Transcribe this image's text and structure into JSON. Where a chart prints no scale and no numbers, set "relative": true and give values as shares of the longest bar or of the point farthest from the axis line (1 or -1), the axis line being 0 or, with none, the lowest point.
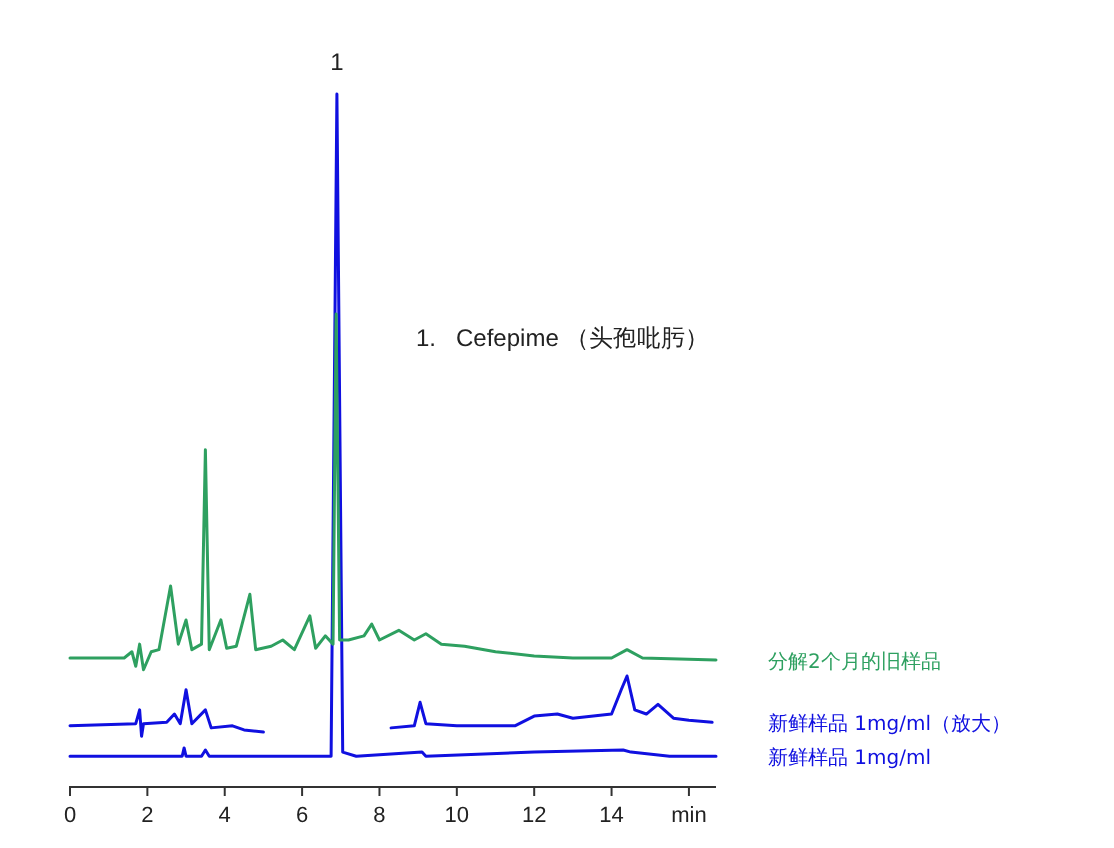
{
  "chart_data": {
    "type": "line",
    "relative": true,
    "xlim": [
      0,
      16.7
    ],
    "xticks": [
      0,
      2,
      4,
      6,
      8,
      10,
      12,
      14,
      {
        "value": 16,
        "label": "min"
      }
    ],
    "legend": "right",
    "annotations": [
      {
        "text": "1",
        "x": 6.9,
        "y": 1
      },
      "1.   Cefepime （头孢吡肟）"
    ],
    "series": [
      {
        "name": "分解2个月的旧样品",
        "color": "#2ea060",
        "x": [
          0,
          1.4,
          1.6,
          1.7,
          1.8,
          1.9,
          2.1,
          2.3,
          2.6,
          2.8,
          3.0,
          3.15,
          3.4,
          3.5,
          3.6,
          3.9,
          4.05,
          4.3,
          4.65,
          4.8,
          5.2,
          5.5,
          5.8,
          6.2,
          6.35,
          6.6,
          6.8,
          6.88,
          6.97,
          7.2,
          7.6,
          7.8,
          8.0,
          8.5,
          8.9,
          9.2,
          9.6,
          10.2,
          11,
          12,
          13,
          14,
          14.4,
          14.8,
          16.7
        ],
        "values": [
          0.185,
          0.185,
          0.194,
          0.173,
          0.205,
          0.168,
          0.194,
          0.197,
          0.289,
          0.205,
          0.24,
          0.197,
          0.205,
          0.486,
          0.197,
          0.24,
          0.199,
          0.202,
          0.277,
          0.197,
          0.202,
          0.211,
          0.197,
          0.246,
          0.199,
          0.217,
          0.205,
          0.682,
          0.211,
          0.211,
          0.217,
          0.234,
          0.211,
          0.225,
          0.211,
          0.22,
          0.205,
          0.202,
          0.194,
          0.188,
          0.185,
          0.185,
          0.197,
          0.185,
          0.182
        ]
      },
      {
        "name": "新鲜样品 1mg/ml（放大）",
        "color": "#1010e0",
        "x": [
          8.3,
          8.9,
          9.05,
          9.2,
          10,
          11.5,
          12,
          12.6,
          13,
          14,
          14.25,
          14.4,
          14.6,
          14.9,
          15.2,
          15.6,
          16,
          16.6
        ],
        "values": [
          0.084,
          0.087,
          0.121,
          0.09,
          0.087,
          0.087,
          0.101,
          0.104,
          0.098,
          0.104,
          0.139,
          0.159,
          0.11,
          0.104,
          0.118,
          0.098,
          0.095,
          0.092
        ]
      },
      {
        "color": "#1010e0",
        "x": [
          0,
          1.7,
          1.8,
          1.85,
          1.9,
          2.5,
          2.7,
          2.85,
          3.0,
          3.15,
          3.5,
          3.65,
          4.2,
          4.5,
          5.0
        ],
        "values": [
          0.087,
          0.09,
          0.11,
          0.072,
          0.09,
          0.092,
          0.104,
          0.09,
          0.139,
          0.09,
          0.11,
          0.084,
          0.087,
          0.081,
          0.078
        ]
      },
      {
        "name": "新鲜样品 1mg/ml",
        "color": "#1010e0",
        "x": [
          0,
          2.9,
          2.95,
          3.0,
          3.4,
          3.5,
          3.6,
          6.75,
          6.9,
          7.05,
          7.4,
          9.1,
          9.2,
          12,
          14.3,
          14.5,
          15.5,
          16.7
        ],
        "values": [
          0.043,
          0.043,
          0.055,
          0.043,
          0.043,
          0.052,
          0.043,
          0.043,
          1.0,
          0.049,
          0.043,
          0.049,
          0.043,
          0.049,
          0.052,
          0.049,
          0.043,
          0.043
        ]
      }
    ]
  }
}
